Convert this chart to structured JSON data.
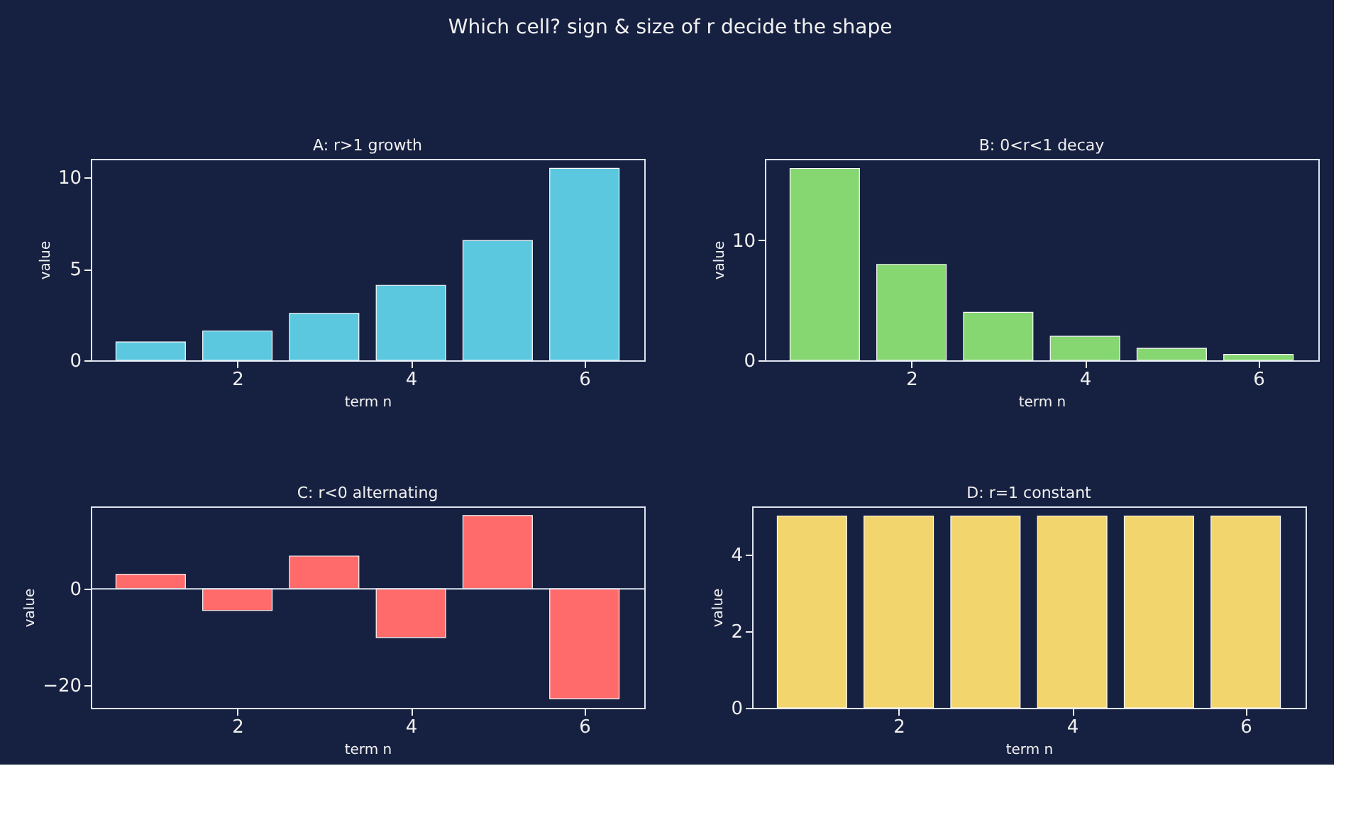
{
  "chart_data": [
    {
      "type": "bar",
      "title": "A: r>1  growth",
      "xlabel": "term n",
      "ylabel": "value",
      "annotations": [
        "Which cell? sign & size of r decide the shape"
      ],
      "x": [
        1,
        2,
        3,
        4,
        5,
        6
      ],
      "series": [
        {
          "color": "#5bc8e0",
          "values": [
            1,
            1.6,
            2.56,
            4.1,
            6.55,
            10.49
          ]
        }
      ],
      "xlim": [
        0.31,
        6.69
      ],
      "xticks": [
        2,
        4,
        6
      ],
      "ylim": [
        0,
        11.01
      ],
      "yticks": [
        0,
        5,
        10
      ],
      "grid": false
    },
    {
      "type": "bar",
      "title": "B: 0<r<1  decay",
      "xlabel": "term n",
      "ylabel": "value",
      "x": [
        1,
        2,
        3,
        4,
        5,
        6
      ],
      "series": [
        {
          "color": "#86d672",
          "values": [
            16,
            8,
            4,
            2,
            1,
            0.5
          ]
        }
      ],
      "xlim": [
        0.31,
        6.69
      ],
      "xticks": [
        2,
        4,
        6
      ],
      "ylim": [
        0,
        16.8
      ],
      "yticks": [
        0,
        10
      ],
      "grid": false
    },
    {
      "type": "bar",
      "title": "C: r<0  alternating",
      "xlabel": "term n",
      "ylabel": "value",
      "x": [
        1,
        2,
        3,
        4,
        5,
        6
      ],
      "series": [
        {
          "color": "#ff6b6b",
          "values": [
            3,
            -4.5,
            6.8,
            -10.1,
            15.2,
            -22.8
          ]
        }
      ],
      "xlim": [
        0.31,
        6.69
      ],
      "xticks": [
        2,
        4,
        6
      ],
      "ylim": [
        -24.7,
        17.1
      ],
      "yticks": [
        -20,
        0
      ],
      "ref_lines": [
        {
          "axis": "y",
          "value": 0,
          "color": "#dde3f0"
        }
      ],
      "grid": false
    },
    {
      "type": "bar",
      "title": "D: r=1  constant",
      "xlabel": "term n",
      "ylabel": "value",
      "x": [
        1,
        2,
        3,
        4,
        5,
        6
      ],
      "series": [
        {
          "color": "#f3d56e",
          "values": [
            5,
            5,
            5,
            5,
            5,
            5
          ]
        }
      ],
      "xlim": [
        0.31,
        6.69
      ],
      "xticks": [
        2,
        4,
        6
      ],
      "ylim": [
        0,
        5.25
      ],
      "yticks": [
        0,
        2,
        4
      ],
      "grid": false
    }
  ]
}
